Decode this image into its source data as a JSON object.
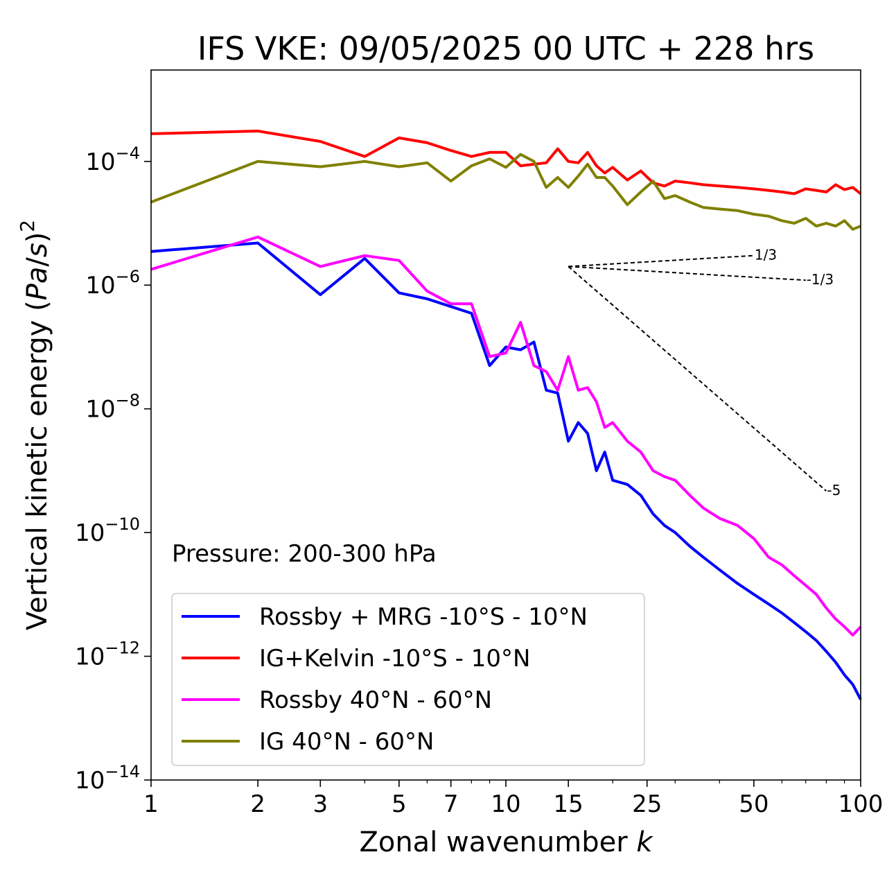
{
  "chart_data": {
    "type": "line",
    "title": "IFS VKE: 09/05/2025 00 UTC + 228 hrs",
    "xlabel": "Zonal wavenumber k",
    "ylabel": "Vertical kinetic energy (Pa/s)^2",
    "xscale": "log",
    "yscale": "log",
    "xlim": [
      1,
      100
    ],
    "ylim": [
      1e-14,
      0.003
    ],
    "grid": false,
    "legend_position": "lower-left",
    "xticks": [
      {
        "value": 1,
        "label": "1"
      },
      {
        "value": 2,
        "label": "2"
      },
      {
        "value": 3,
        "label": "3"
      },
      {
        "value": 5,
        "label": "5"
      },
      {
        "value": 7,
        "label": "7"
      },
      {
        "value": 10,
        "label": "10"
      },
      {
        "value": 15,
        "label": "15"
      },
      {
        "value": 25,
        "label": "25"
      },
      {
        "value": 50,
        "label": "50"
      },
      {
        "value": 100,
        "label": "100"
      }
    ],
    "yticks": [
      {
        "value": 0.0001,
        "exp": "-4"
      },
      {
        "value": 1e-06,
        "exp": "-6"
      },
      {
        "value": 1e-08,
        "exp": "-8"
      },
      {
        "value": 1e-10,
        "exp": "-10"
      },
      {
        "value": 1e-12,
        "exp": "-12"
      },
      {
        "value": 1e-14,
        "exp": "-14"
      }
    ],
    "annotation": "Pressure: 200-300 hPa",
    "reference_lines": [
      {
        "label": "1/3",
        "x": [
          15,
          50
        ],
        "y": [
          2e-06,
          3e-06
        ]
      },
      {
        "label": "-1/3",
        "x": [
          15,
          70
        ],
        "y": [
          2e-06,
          1.2e-06
        ]
      },
      {
        "label": "-5",
        "x": [
          15,
          80
        ],
        "y": [
          2e-06,
          4.7e-10
        ]
      }
    ],
    "series": [
      {
        "name": "Rossby + MRG -10°S - 10°N",
        "color": "#0000ff",
        "x": [
          1,
          2,
          3,
          4,
          5,
          6,
          7,
          8,
          9,
          10,
          11,
          12,
          13,
          14,
          15,
          16,
          17,
          18,
          19,
          20,
          22,
          24,
          26,
          28,
          30,
          33,
          36,
          40,
          45,
          50,
          55,
          60,
          65,
          70,
          75,
          80,
          85,
          90,
          95,
          100
        ],
        "y": [
          3.5e-06,
          4.8e-06,
          7e-07,
          2.7e-06,
          7.5e-07,
          6e-07,
          4.5e-07,
          3.5e-07,
          5e-08,
          1e-07,
          9e-08,
          1.2e-07,
          2e-08,
          1.8e-08,
          3e-09,
          6e-09,
          4e-09,
          1e-09,
          2e-09,
          7e-10,
          6e-10,
          4e-10,
          2e-10,
          1.3e-10,
          1e-10,
          6e-11,
          4e-11,
          2.5e-11,
          1.5e-11,
          1e-11,
          7e-12,
          5e-12,
          3.5e-12,
          2.5e-12,
          1.8e-12,
          1.2e-12,
          8e-13,
          5e-13,
          3.5e-13,
          2e-13
        ]
      },
      {
        "name": "IG+Kelvin -10°S - 10°N",
        "color": "#ff0000",
        "x": [
          1,
          2,
          3,
          4,
          5,
          6,
          7,
          8,
          9,
          10,
          11,
          12,
          13,
          14,
          15,
          16,
          17,
          18,
          19,
          20,
          22,
          24,
          26,
          28,
          30,
          33,
          36,
          40,
          45,
          50,
          55,
          60,
          65,
          70,
          75,
          80,
          85,
          90,
          95,
          100
        ],
        "y": [
          0.00028,
          0.00031,
          0.00021,
          0.00012,
          0.00024,
          0.0002,
          0.00015,
          0.00012,
          0.00014,
          0.00014,
          8.5e-05,
          9e-05,
          9.5e-05,
          0.00016,
          0.0001,
          9.5e-05,
          0.00014,
          8.5e-05,
          6.5e-05,
          8e-05,
          5e-05,
          7e-05,
          4.5e-05,
          4e-05,
          4.8e-05,
          4.5e-05,
          4.2e-05,
          4e-05,
          3.8e-05,
          3.6e-05,
          3.4e-05,
          3.2e-05,
          3e-05,
          3.6e-05,
          3.4e-05,
          3.2e-05,
          4.2e-05,
          3.5e-05,
          3.8e-05,
          3e-05
        ]
      },
      {
        "name": "Rossby 40°N - 60°N",
        "color": "#ff00ff",
        "x": [
          1,
          2,
          3,
          4,
          5,
          6,
          7,
          8,
          9,
          10,
          11,
          12,
          13,
          14,
          15,
          16,
          17,
          18,
          19,
          20,
          22,
          24,
          26,
          28,
          30,
          33,
          36,
          40,
          45,
          50,
          55,
          60,
          65,
          70,
          75,
          80,
          85,
          90,
          95,
          100
        ],
        "y": [
          1.8e-06,
          6e-06,
          2e-06,
          3e-06,
          2.5e-06,
          8e-07,
          5e-07,
          5e-07,
          7e-08,
          8e-08,
          2.5e-07,
          5e-08,
          4e-08,
          2e-08,
          7e-08,
          2e-08,
          2.2e-08,
          1.3e-08,
          5e-09,
          6e-09,
          3e-09,
          2e-09,
          1e-09,
          8e-10,
          7e-10,
          4e-10,
          2.5e-10,
          1.7e-10,
          1.3e-10,
          8e-11,
          4e-11,
          3e-11,
          2e-11,
          1.4e-11,
          1e-11,
          6e-12,
          4e-12,
          3e-12,
          2.2e-12,
          3e-12
        ]
      },
      {
        "name": "IG 40°N - 60°N",
        "color": "#808000",
        "x": [
          1,
          2,
          3,
          4,
          5,
          6,
          7,
          8,
          9,
          10,
          11,
          12,
          13,
          14,
          15,
          16,
          17,
          18,
          19,
          20,
          22,
          24,
          26,
          28,
          30,
          33,
          36,
          40,
          45,
          50,
          55,
          60,
          65,
          70,
          75,
          80,
          85,
          90,
          95,
          100
        ],
        "y": [
          2.2e-05,
          0.0001,
          8.2e-05,
          0.0001,
          8.2e-05,
          9.5e-05,
          4.8e-05,
          8.5e-05,
          0.00011,
          8e-05,
          0.00013,
          0.0001,
          3.8e-05,
          5.5e-05,
          3.8e-05,
          5.8e-05,
          9e-05,
          5.5e-05,
          5.5e-05,
          4e-05,
          2e-05,
          3.2e-05,
          4.8e-05,
          2.5e-05,
          2.8e-05,
          2.2e-05,
          1.8e-05,
          1.7e-05,
          1.6e-05,
          1.4e-05,
          1.3e-05,
          1.1e-05,
          1e-05,
          1.2e-05,
          9e-06,
          1e-05,
          9e-06,
          1.1e-05,
          8e-06,
          9e-06
        ]
      }
    ]
  }
}
